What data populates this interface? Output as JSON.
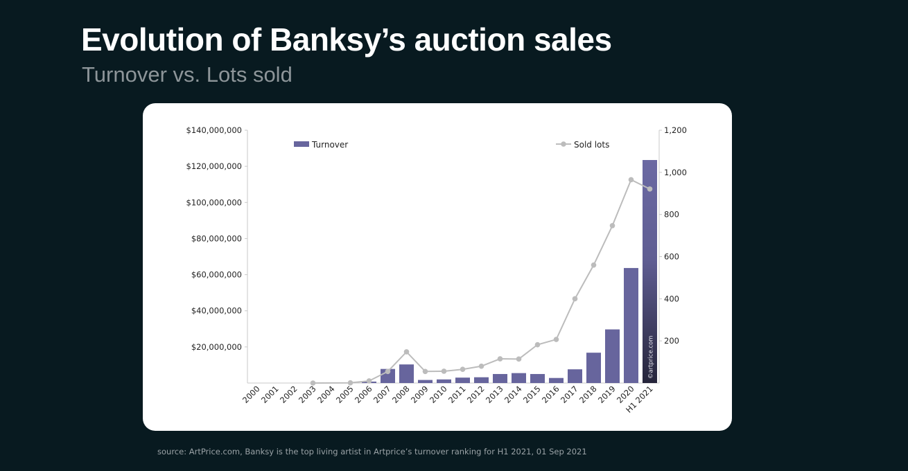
{
  "header": {
    "title": "Evolution of Banksy’s auction sales",
    "subtitle": "Turnover vs. Lots sold"
  },
  "footer": {
    "source": "source: ArtPrice.com, Banksy is the top living artist in Artprice’s turnover ranking for H1 2021, 01 Sep 2021"
  },
  "colors": {
    "bar": "#67659d",
    "bar_dark": "#2a2940",
    "line": "#bcbcbc",
    "axis": "#c8c8c8",
    "text": "#222222"
  },
  "chart_data": {
    "type": "bar",
    "categories": [
      "2000",
      "2001",
      "2002",
      "2003",
      "2004",
      "2005",
      "2006",
      "2007",
      "2008",
      "2009",
      "2010",
      "2011",
      "2012",
      "2013",
      "2014",
      "2015",
      "2016",
      "2017",
      "2018",
      "2019",
      "2020",
      "H1 2021"
    ],
    "series": [
      {
        "name": "Turnover",
        "type": "bar",
        "axis": "left",
        "values": [
          0,
          0,
          0,
          0,
          0,
          0,
          800000,
          7800000,
          10300000,
          1700000,
          2000000,
          3000000,
          3200000,
          5000000,
          5500000,
          5000000,
          2800000,
          7600000,
          16800000,
          29700000,
          63700000,
          123500000
        ]
      },
      {
        "name": "Sold lots",
        "type": "line",
        "axis": "right",
        "values": [
          null,
          null,
          null,
          0,
          null,
          1,
          10,
          55,
          148,
          55,
          56,
          65,
          80,
          115,
          114,
          182,
          207,
          400,
          560,
          747,
          965,
          921
        ]
      }
    ],
    "left_axis": {
      "min": 0,
      "max": 140000000,
      "ticks": [
        20000000,
        40000000,
        60000000,
        80000000,
        100000000,
        120000000,
        140000000
      ],
      "tick_labels": [
        "$20,000,000",
        "$40,000,000",
        "$60,000,000",
        "$80,000,000",
        "$100,000,000",
        "$120,000,000",
        "$140,000,000"
      ]
    },
    "right_axis": {
      "min": 0,
      "max": 1200,
      "ticks": [
        200,
        400,
        600,
        800,
        1000,
        1200
      ],
      "tick_labels": [
        "200",
        "400",
        "600",
        "800",
        "1,000",
        "1,200"
      ]
    },
    "legend": {
      "placement": "top"
    },
    "watermark": "©artprice.com",
    "grid": false
  }
}
